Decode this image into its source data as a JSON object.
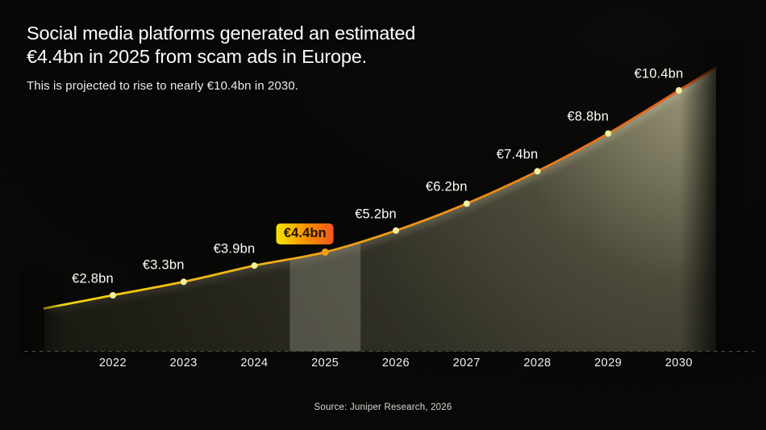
{
  "header": {
    "title_line1": "Social media platforms generated an estimated",
    "title_line2": "€4.4bn in 2025 from scam ads in Europe.",
    "subtitle": "This is projected to rise to nearly €10.4bn in 2030."
  },
  "footer": {
    "source": "Source: Juniper Research, 2026"
  },
  "chart_data": {
    "type": "area",
    "title": "Social media platforms generated an estimated €4.4bn in 2025 from scam ads in Europe.",
    "subtitle": "This is projected to rise to nearly €10.4bn in 2030.",
    "categories": [
      "2022",
      "2023",
      "2024",
      "2025",
      "2026",
      "2027",
      "2028",
      "2029",
      "2030"
    ],
    "values": [
      2.8,
      3.3,
      3.9,
      4.4,
      5.2,
      6.2,
      7.4,
      8.8,
      10.4
    ],
    "point_labels": [
      "€2.8bn",
      "€3.3bn",
      "€3.9bn",
      "€4.4bn",
      "€5.2bn",
      "€6.2bn",
      "€7.4bn",
      "€8.8bn",
      "€10.4bn"
    ],
    "unit": "€bn",
    "ylim": [
      0,
      11
    ],
    "highlighted_category": "2025",
    "highlight_band": [
      2024.5,
      2025.5
    ],
    "grid": "off",
    "legend": "none",
    "baseline_style": "dashed",
    "colors": {
      "line_start": "#f2d713",
      "line_mid": "#f0a415",
      "line_end": "#e2531d",
      "dot": "#f3ef9c",
      "dot_highlight": "#f59b1c",
      "badge_gradient": [
        "#f9e300",
        "#f59300",
        "#f1571f"
      ],
      "badge_text": "#201300",
      "band_overlay": "rgba(252,248,228,0.20)",
      "baseline": "#4c4b47",
      "background": "#070706"
    }
  }
}
